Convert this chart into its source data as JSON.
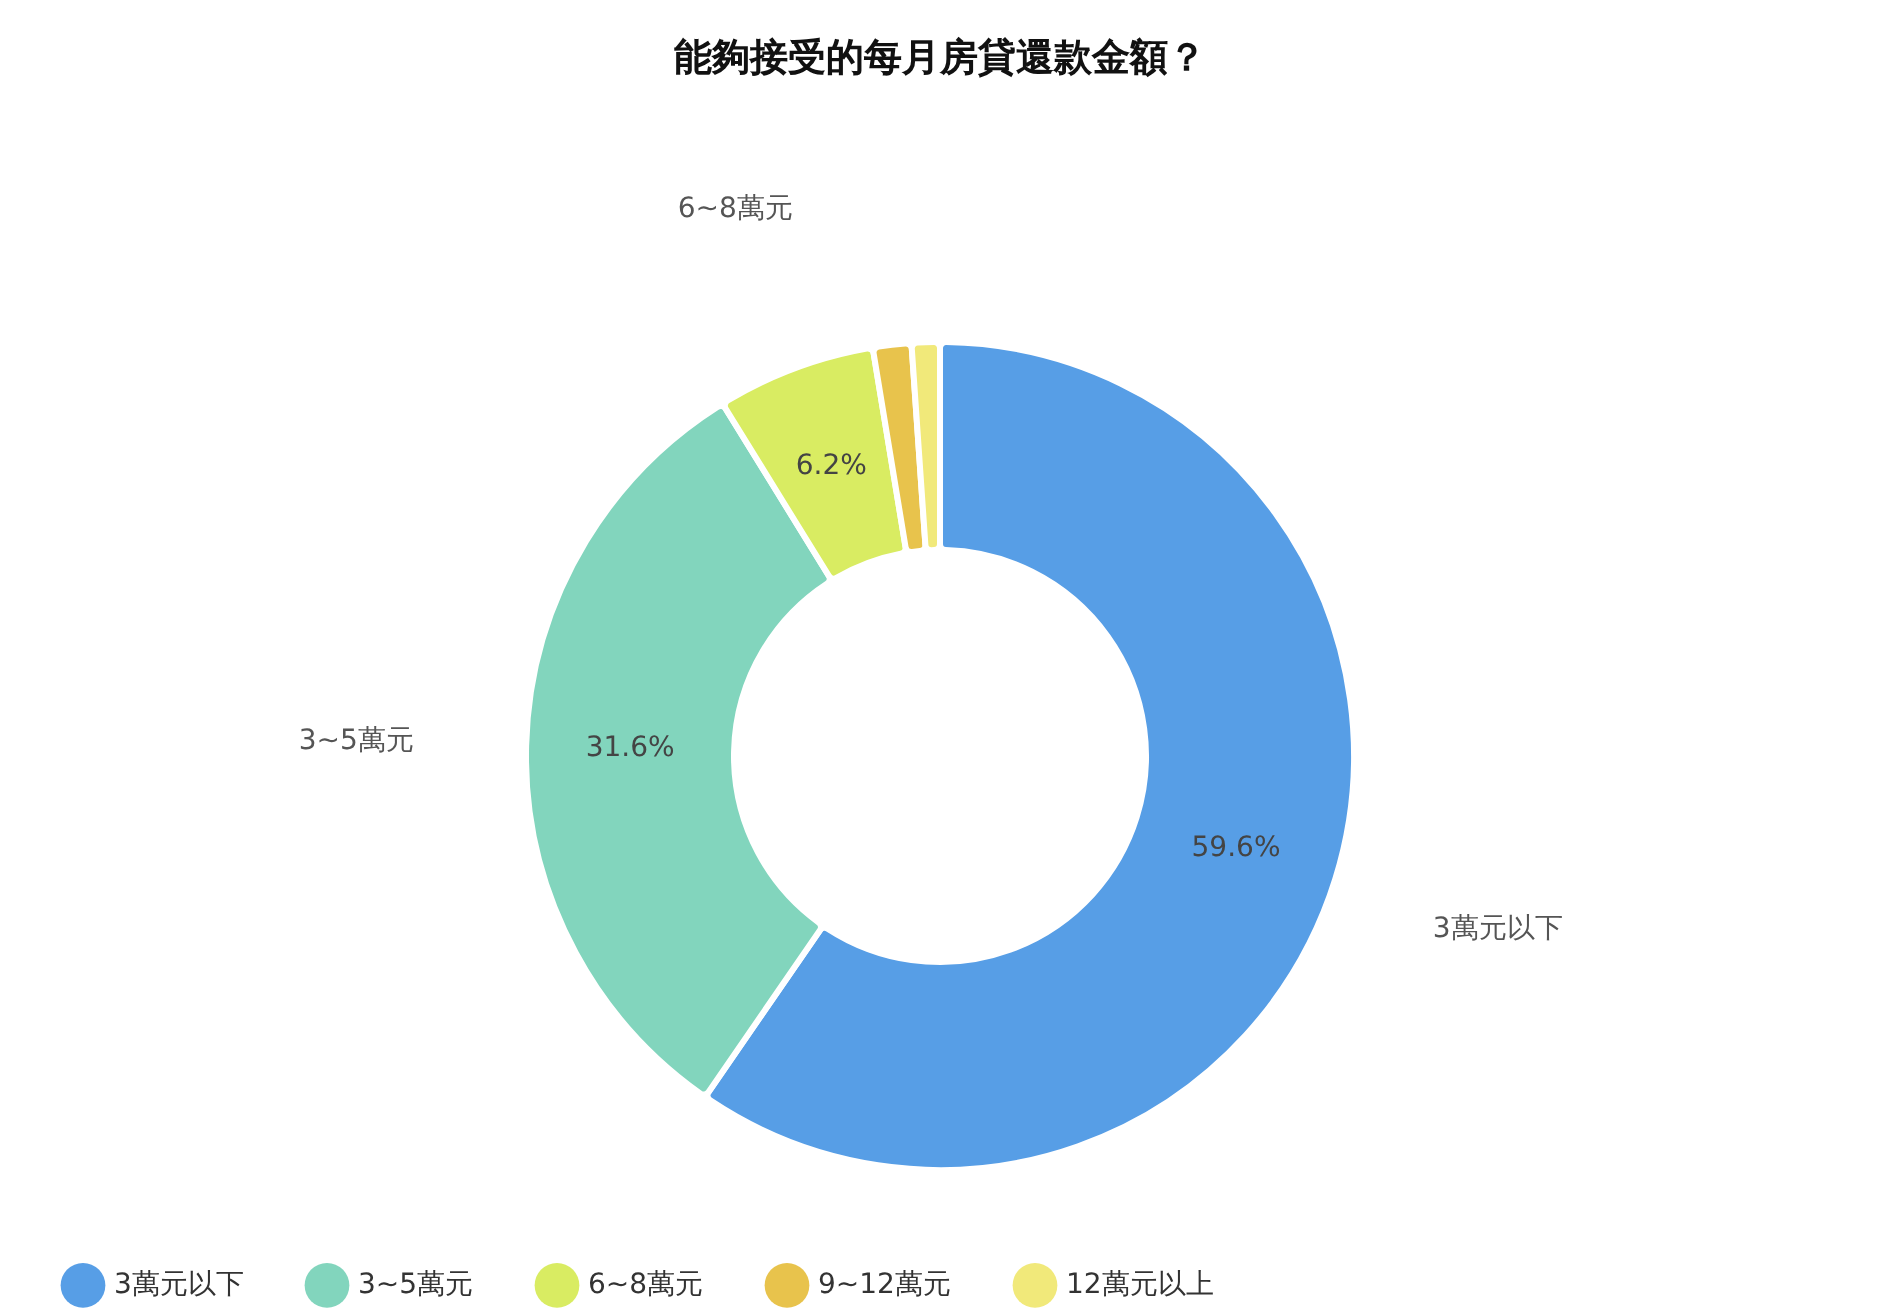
{
  "chart_data": {
    "type": "donut",
    "title": "能夠接受的每月房貸還款金額？",
    "categories": [
      "3萬元以下",
      "3~5萬元",
      "6~8萬元",
      "9~12萬元",
      "12萬元以上"
    ],
    "values": [
      59.6,
      31.6,
      6.2,
      1.5,
      1.1
    ],
    "value_labels": [
      "59.6%",
      "31.6%",
      "6.2%",
      null,
      null
    ],
    "colors": [
      "#579ee6",
      "#82d5bd",
      "#d9ec62",
      "#e8c34c",
      "#f1e97a"
    ],
    "legend": "bottom"
  }
}
